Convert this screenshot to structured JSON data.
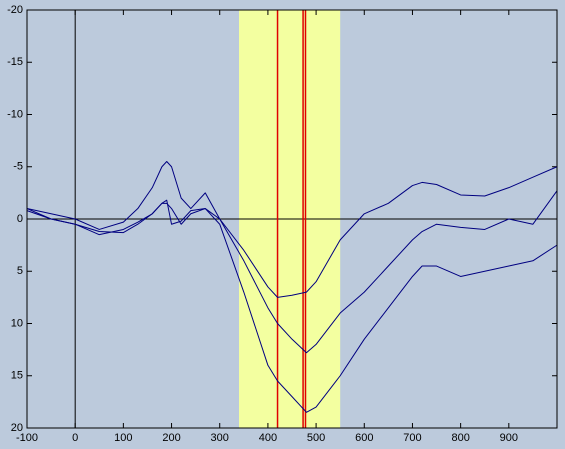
{
  "chart_data": {
    "type": "line",
    "x": [
      -100,
      -50,
      0,
      50,
      100,
      130,
      160,
      180,
      190,
      200,
      220,
      240,
      270,
      300,
      350,
      400,
      420,
      450,
      480,
      500,
      550,
      600,
      650,
      700,
      720,
      750,
      800,
      850,
      900,
      950,
      1000
    ],
    "series": [
      {
        "color": "#000080",
        "values": [
          -1,
          -0.5,
          0,
          1,
          0.3,
          -1,
          -3,
          -5,
          -5.5,
          -5,
          -2,
          -1,
          -2.5,
          0,
          3,
          6.5,
          7.5,
          7.3,
          7,
          6,
          2,
          -0.5,
          -1.5,
          -3.2,
          -3.5,
          -3.3,
          -2.3,
          -2.2,
          -3,
          -4,
          -5
        ]
      },
      {
        "color": "#000080",
        "values": [
          -1,
          0,
          0.5,
          1.2,
          1.3,
          0.5,
          -0.5,
          -1.5,
          -1.5,
          -1,
          0.5,
          -0.5,
          -1,
          0,
          4,
          8.5,
          10,
          11.5,
          12.8,
          12,
          9,
          7,
          4.5,
          2,
          1.2,
          0.5,
          0.8,
          1,
          0,
          0.5,
          -2.7
        ]
      },
      {
        "color": "#000080",
        "values": [
          -0.8,
          0,
          0.5,
          1.5,
          1,
          0.3,
          -0.5,
          -1.5,
          -1.8,
          0.5,
          0.2,
          -0.8,
          -1,
          0.5,
          7,
          14,
          15.5,
          17,
          18.5,
          18,
          15,
          11.5,
          8.5,
          5.5,
          4.5,
          4.5,
          5.5,
          5,
          4.5,
          4,
          2.5
        ]
      }
    ],
    "xlim": [
      -100,
      1000
    ],
    "ylim": [
      -20,
      20
    ],
    "y_reversed": true,
    "xticks": [
      -100,
      0,
      100,
      200,
      300,
      400,
      500,
      600,
      700,
      800,
      900
    ],
    "yticks": [
      -20,
      -15,
      -10,
      -5,
      0,
      5,
      10,
      15,
      20
    ],
    "highlight": [
      340,
      550
    ],
    "highlight_color": "#f3ffa0",
    "markers": [
      420,
      473,
      478
    ],
    "marker_color": "#e00000",
    "zero_lines": true
  }
}
